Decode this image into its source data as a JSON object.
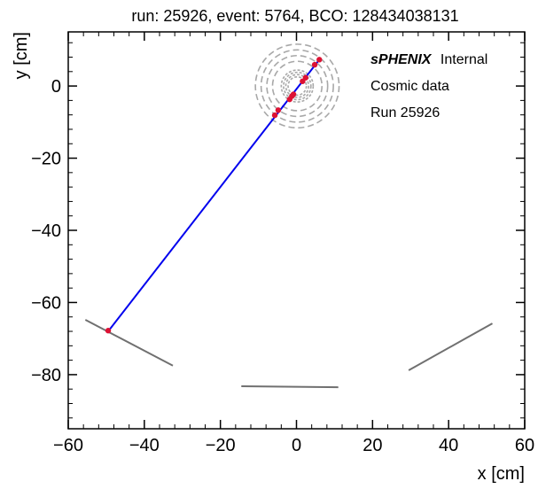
{
  "chart_data": {
    "type": "scatter",
    "title": "run: 25926, event: 5764, BCO: 128434038131",
    "xlabel": "x [cm]",
    "ylabel": "y [cm]",
    "xlim": [
      -60,
      60
    ],
    "ylim": [
      -95,
      15
    ],
    "x_ticks": [
      -60,
      -40,
      -20,
      0,
      20,
      40,
      60
    ],
    "y_ticks": [
      -80,
      -60,
      -40,
      -20,
      0
    ],
    "grid": false,
    "annotations": [
      {
        "bold": "sPHENIX",
        "text": "Internal"
      },
      {
        "text": "Cosmic data"
      },
      {
        "text": "Run 25926"
      }
    ],
    "track": {
      "color": "#0000ee",
      "x": [
        -49.5,
        6.0
      ],
      "y": [
        -68.0,
        7.3
      ]
    },
    "hits": {
      "color": "#dd1133",
      "points": [
        {
          "x": -49.5,
          "y": -67.8
        },
        {
          "x": -5.7,
          "y": -8.1
        },
        {
          "x": -4.8,
          "y": -6.7
        },
        {
          "x": -1.8,
          "y": -3.7
        },
        {
          "x": -1.2,
          "y": -2.8
        },
        {
          "x": -0.8,
          "y": -2.3
        },
        {
          "x": 1.6,
          "y": 1.3
        },
        {
          "x": 2.4,
          "y": 2.3
        },
        {
          "x": 4.8,
          "y": 5.9
        },
        {
          "x": 6.0,
          "y": 7.3
        }
      ]
    },
    "detector_rings": {
      "color": "#a8a8a8",
      "center": [
        0.2,
        0.0
      ],
      "radii": [
        2.4,
        3.0,
        3.6,
        4.2,
        6.5,
        8.0,
        9.5,
        11.0
      ]
    },
    "detector_segments": {
      "color": "#707070",
      "segments": [
        {
          "x": [
            -55.5,
            -32.5
          ],
          "y": [
            -64.8,
            -77.5
          ]
        },
        {
          "x": [
            -14.5,
            11.0
          ],
          "y": [
            -83.2,
            -83.5
          ]
        },
        {
          "x": [
            29.5,
            51.5
          ],
          "y": [
            -78.8,
            -65.8
          ]
        }
      ]
    }
  }
}
